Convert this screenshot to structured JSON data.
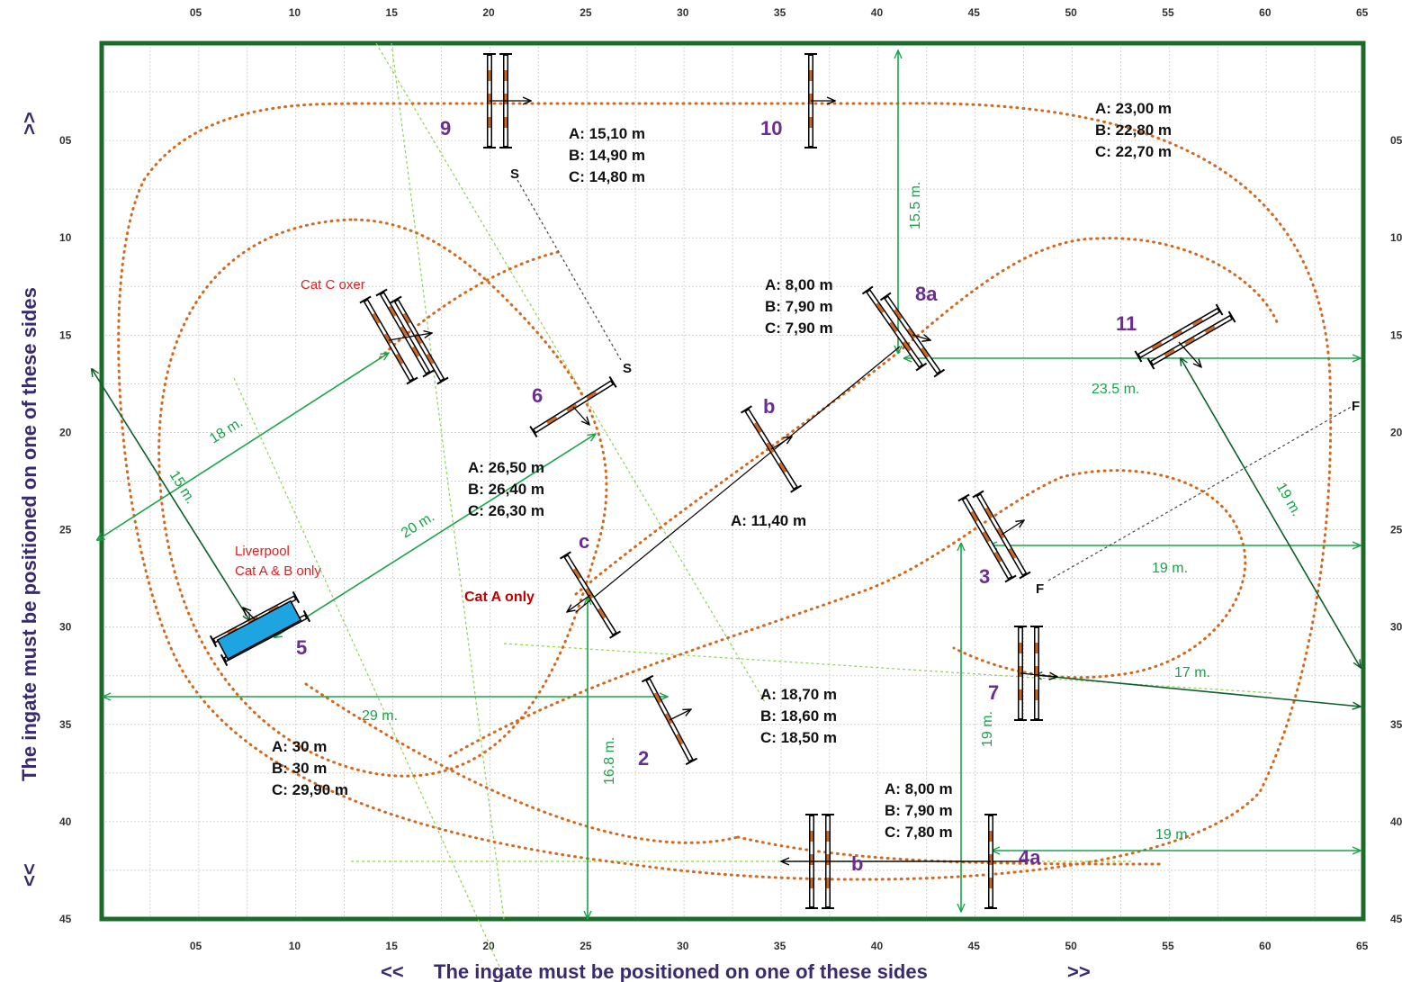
{
  "axis": {
    "x_ticks": [
      "05",
      "10",
      "15",
      "20",
      "25",
      "30",
      "35",
      "40",
      "45",
      "50",
      "55",
      "60",
      "65"
    ],
    "y_ticks": [
      "05",
      "10",
      "15",
      "20",
      "25",
      "30",
      "35",
      "40",
      "45"
    ]
  },
  "ingate": {
    "bottom": "The ingate must be positioned on one of these sides",
    "bottom_left_arrow": "<<",
    "bottom_right_arrow": ">>",
    "left": "The ingate must be positioned on one of these sides",
    "left_top_arrow": ">>",
    "left_bottom_arrow": "<<"
  },
  "fences": {
    "f2": "2",
    "f3": "3",
    "f4a": "4a",
    "f4b": "b",
    "f5": "5",
    "f6": "6",
    "f7": "7",
    "f8a": "8a",
    "f8b": "b",
    "f8c": "c",
    "f9": "9",
    "f10": "10",
    "f11": "11"
  },
  "notes": {
    "oxer": "Cat C oxer",
    "liverpool_1": "Liverpool",
    "liverpool_2": "Cat A & B only",
    "cat_a_only": "Cat A only"
  },
  "markers": {
    "start": "S",
    "start2": "S",
    "finish": "F",
    "finish2": "F"
  },
  "distances": {
    "d9_10": [
      "A: 15,10 m",
      "B: 14,90 m",
      "C: 14,80 m"
    ],
    "d10_11": [
      "A: 23,00 m",
      "B: 22,80 m",
      "C: 22,70 m"
    ],
    "d8ab": [
      "A: 8,00 m",
      "B: 7,90 m",
      "C: 7,90 m"
    ],
    "d8bc": [
      "A: 11,40 m"
    ],
    "d5_6": [
      "A: 26,50 m",
      "B: 26,40 m",
      "C: 26,30 m"
    ],
    "d6_7": [
      "A: 18,70 m",
      "B: 18,60 m",
      "C: 18,50 m"
    ],
    "d4ab": [
      "A: 8,00 m",
      "B: 7,90 m",
      "C: 7,80 m"
    ],
    "d1_2": [
      "A: 30 m",
      "B: 30 m",
      "C: 29,90 m"
    ]
  },
  "measures": {
    "m15_5": "15.5 m.",
    "m23_5": "23.5 m.",
    "m18": "18 m.",
    "m15": "15 m.",
    "m20": "20 m.",
    "m29": "29 m.",
    "m16_8": "16.8 m.",
    "m19_a": "19 m.",
    "m19_b": "19 m.",
    "m19_c": "19 m.",
    "m19_d": "19 m.",
    "m17": "17 m."
  }
}
